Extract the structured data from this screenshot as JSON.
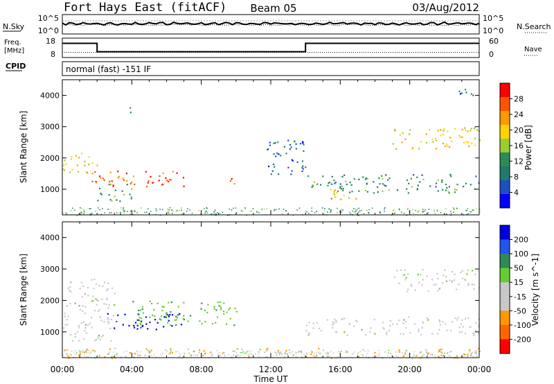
{
  "header": {
    "station": "Fort Hays East (fitACF)",
    "beam": "Beam 05",
    "date": "03/Aug/2012"
  },
  "labels": {
    "nsky": "N.Sky",
    "nsearch": "N.Search",
    "freq_line1": "Freq.",
    "freq_line2": "[MHz]",
    "nave": "Nave",
    "cpid": "CPID",
    "cpid_value": "normal (fast) -151 IF",
    "xlabel": "Time UT"
  },
  "noise_axis": {
    "left_ticks": [
      "10^5",
      "10^0"
    ],
    "right_ticks": [
      "10^5",
      "10^0"
    ]
  },
  "freq_axis": {
    "left_ticks": [
      "18",
      "8"
    ],
    "right_ticks": [
      "60",
      "0"
    ]
  },
  "chart_data": [
    {
      "type": "heatmap",
      "name": "power",
      "ylabel": "Slant Range [km]",
      "ylim": [
        180,
        4500
      ],
      "yticks": [
        1000,
        2000,
        3000,
        4000
      ],
      "xlim": [
        0,
        24
      ],
      "xticks": [
        "00:00",
        "04:00",
        "08:00",
        "12:00",
        "16:00",
        "20:00",
        "00:00"
      ],
      "colorbar": {
        "label": "Power [dB]",
        "ticks": [
          "28",
          "24",
          "20",
          "16",
          "12",
          "8",
          "4"
        ],
        "colors": [
          "#ff0000",
          "#ff5500",
          "#ff9900",
          "#ffd400",
          "#9acd32",
          "#2e8b57",
          "#207a6e",
          "#2050c0",
          "#0000ff"
        ]
      },
      "echo_regions": [
        {
          "t0": 0.0,
          "t1": 2.0,
          "r0": 1500,
          "r1": 2200,
          "value": 18
        },
        {
          "t0": 1.5,
          "t1": 7.0,
          "r0": 1100,
          "r1": 1600,
          "value": 26
        },
        {
          "t0": 2.0,
          "t1": 4.0,
          "r0": 600,
          "r1": 1200,
          "value": 12
        },
        {
          "t0": 3.8,
          "t1": 4.1,
          "r0": 3300,
          "r1": 3700,
          "value": 8
        },
        {
          "t0": 9.5,
          "t1": 10.2,
          "r0": 1100,
          "r1": 1400,
          "value": 24
        },
        {
          "t0": 11.5,
          "t1": 14.0,
          "r0": 1500,
          "r1": 2600,
          "value": 6
        },
        {
          "t0": 14.0,
          "t1": 24.0,
          "r0": 900,
          "r1": 1500,
          "value": 10
        },
        {
          "t0": 15.0,
          "t1": 17.0,
          "r0": 700,
          "r1": 1100,
          "value": 20
        },
        {
          "t0": 19.0,
          "t1": 24.0,
          "r0": 2300,
          "r1": 3000,
          "value": 18
        },
        {
          "t0": 22.5,
          "t1": 23.8,
          "r0": 4000,
          "r1": 4300,
          "value": 6
        }
      ]
    },
    {
      "type": "heatmap",
      "name": "velocity",
      "ylabel": "Slant Range [km]",
      "ylim": [
        180,
        4500
      ],
      "yticks": [
        1000,
        2000,
        3000,
        4000
      ],
      "xlim": [
        0,
        24
      ],
      "xticks": [
        "00:00",
        "04:00",
        "08:00",
        "12:00",
        "16:00",
        "20:00",
        "00:00"
      ],
      "colorbar": {
        "label": "Velocity [m s^-1]",
        "ticks": [
          "200",
          "100",
          "50",
          "15",
          "-15",
          "-50",
          "-100",
          "-200"
        ],
        "colors": [
          "#0000dd",
          "#2255ee",
          "#2e8b57",
          "#66cc33",
          "#c8c8c8",
          "#c8c8c8",
          "#ff9900",
          "#ff6600",
          "#ff0000"
        ]
      },
      "echo_regions": [
        {
          "t0": 0.0,
          "t1": 3.0,
          "r0": 700,
          "r1": 2700,
          "value": 0
        },
        {
          "t0": 2.5,
          "t1": 7.0,
          "r0": 1100,
          "r1": 1600,
          "value": 200
        },
        {
          "t0": 4.0,
          "t1": 10.0,
          "r0": 1200,
          "r1": 2000,
          "value": 60
        },
        {
          "t0": 14.0,
          "t1": 24.0,
          "r0": 900,
          "r1": 1500,
          "value": 0
        },
        {
          "t0": 19.0,
          "t1": 24.0,
          "r0": 2300,
          "r1": 3000,
          "value": 0
        },
        {
          "t0": 0.0,
          "t1": 24.0,
          "r0": 180,
          "r1": 500,
          "value": -80
        }
      ]
    }
  ]
}
